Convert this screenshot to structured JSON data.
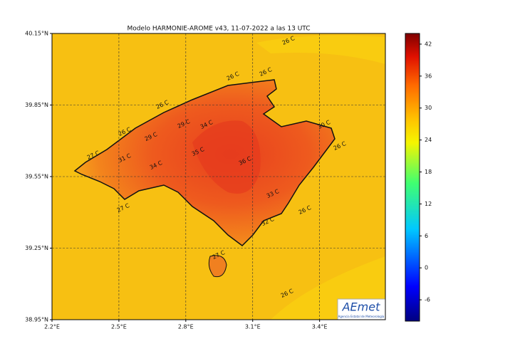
{
  "map": {
    "title": "Modelo HARMONIE-AROME v43, 11-07-2022 a las 13 UTC",
    "lonlim": [
      2.2,
      3.695
    ],
    "latlim": [
      38.95,
      40.15
    ],
    "lon_ticks": [
      {
        "value": 2.2,
        "label": "2.2°E"
      },
      {
        "value": 2.5,
        "label": "2.5°E"
      },
      {
        "value": 2.8,
        "label": "2.8°E"
      },
      {
        "value": 3.1,
        "label": "3.1°E"
      },
      {
        "value": 3.4,
        "label": "3.4°E"
      }
    ],
    "lat_ticks": [
      {
        "value": 40.15,
        "label": "40.15°N"
      },
      {
        "value": 39.85,
        "label": "39.85°N"
      },
      {
        "value": 39.55,
        "label": "39.55°N"
      },
      {
        "value": 39.25,
        "label": "39.25°N"
      },
      {
        "value": 38.95,
        "label": "38.95°N"
      }
    ],
    "grid": true,
    "colorbar": {
      "lim": [
        -10,
        44
      ],
      "ticks": [
        42,
        36,
        30,
        24,
        18,
        12,
        6,
        0,
        -6
      ]
    },
    "contour_labels": [
      "26 C",
      "26 C",
      "26 C",
      "26 C",
      "26 C",
      "29 C",
      "29 C",
      "34 C",
      "30 C",
      "26 C",
      "27 C",
      "31 C",
      "35 C",
      "34 C",
      "36 C",
      "33 C",
      "27 C",
      "26 C",
      "32 C",
      "27 C",
      "26 C"
    ],
    "logo": {
      "name": "AEmet",
      "subtitle": "Agencia Estatal de Meteorología"
    }
  }
}
